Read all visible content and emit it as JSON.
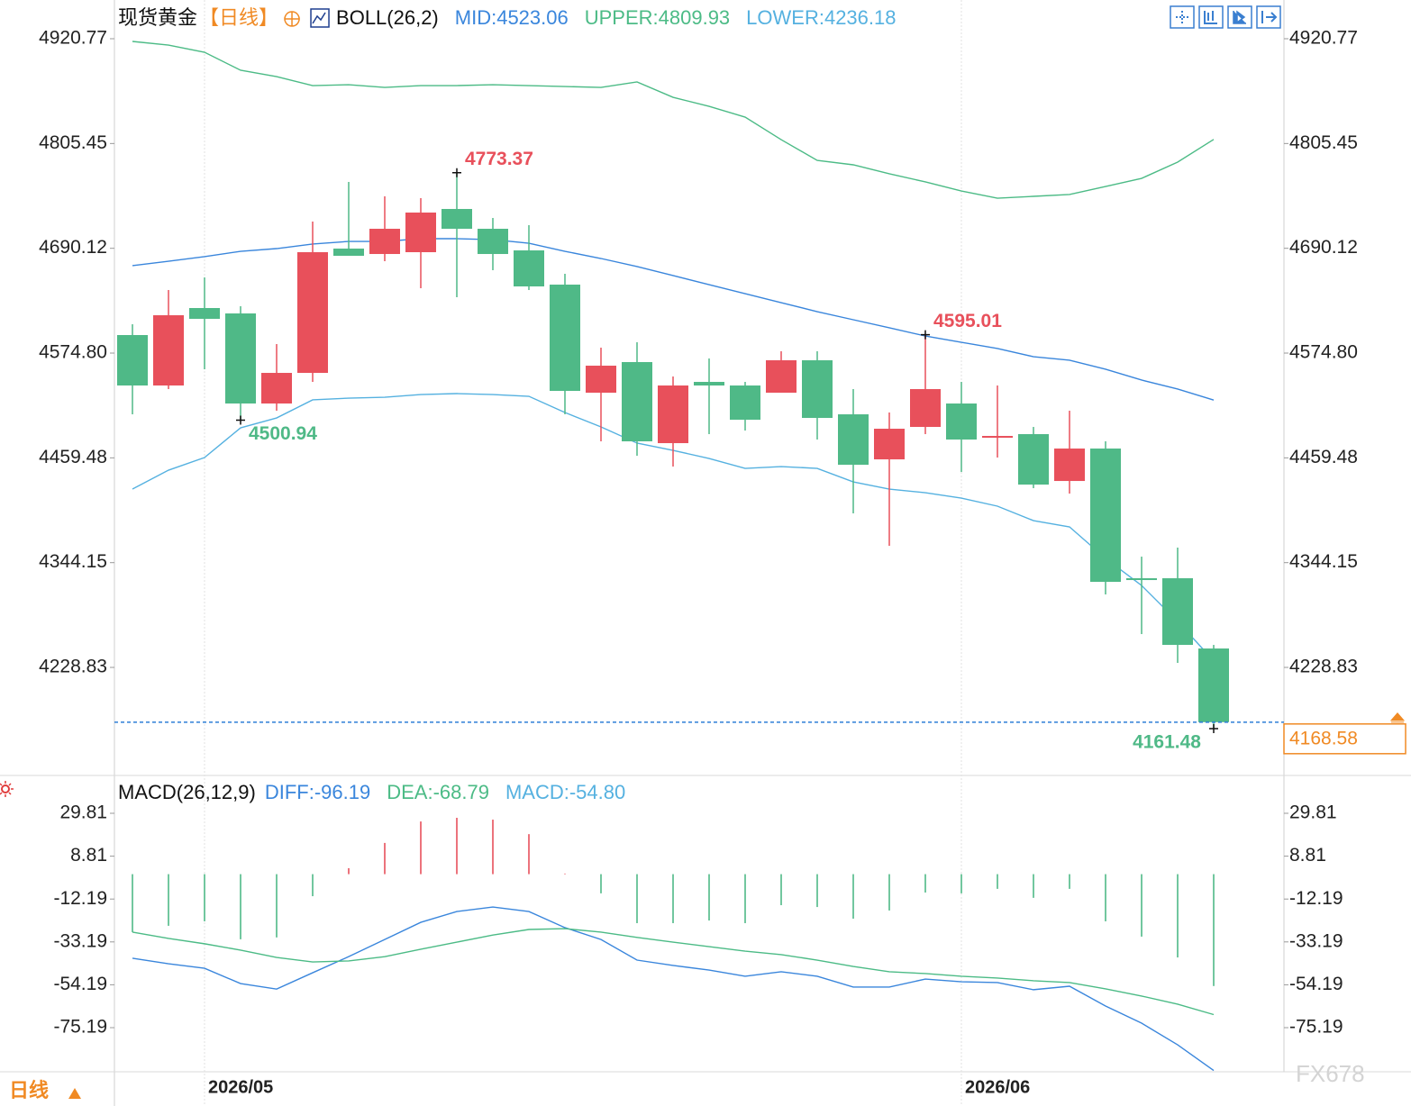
{
  "chart_data": [
    {
      "type": "candlestick",
      "title": "现货黄金",
      "period": "【日线】",
      "indicator": "BOLL(26,2)",
      "categories": [
        null,
        null,
        "2026/05",
        null,
        null,
        null,
        null,
        null,
        null,
        null,
        null,
        null,
        null,
        null,
        null,
        null,
        null,
        null,
        null,
        null,
        null,
        null,
        null,
        "2026/06",
        null,
        null,
        null,
        null,
        null,
        null,
        null
      ],
      "open": [
        4594.63,
        4539.11,
        4624.37,
        4618.42,
        4519.29,
        4552.99,
        4689.79,
        4683.84,
        4685.83,
        4733.41,
        4711.6,
        4687.81,
        4650.14,
        4531.18,
        4564.89,
        4475.67,
        4543.08,
        4539.11,
        4531.18,
        4566.87,
        4507.39,
        4457.82,
        4493.51,
        4519.29,
        4481.62,
        4485.58,
        4434.03,
        4469.72,
        4326.97,
        4326.97,
        4249.65
      ],
      "high": [
        4606.52,
        4644.19,
        4658.07,
        4626.35,
        4584.71,
        4719.53,
        4763.15,
        4747.29,
        4745.31,
        4773.37,
        4723.5,
        4715.57,
        4662.04,
        4580.75,
        4586.7,
        4549.02,
        4568.85,
        4543.08,
        4576.78,
        4576.78,
        4535.15,
        4509.37,
        4595.01,
        4543.08,
        4539.11,
        4493.51,
        4511.35,
        4477.65,
        4350.76,
        4360.67,
        4253.61
      ],
      "low": [
        4507.39,
        4535.15,
        4556.96,
        4500.94,
        4511.35,
        4543.08,
        4681.86,
        4675.91,
        4646.17,
        4636.26,
        4666.0,
        4644.19,
        4507.39,
        4477.65,
        4461.79,
        4449.89,
        4485.58,
        4489.55,
        4531.18,
        4479.63,
        4398.34,
        4362.66,
        4485.58,
        4443.94,
        4459.81,
        4426.1,
        4420.15,
        4309.13,
        4265.51,
        4233.79,
        4161.48
      ],
      "close": [
        4539.11,
        4616.43,
        4612.47,
        4519.29,
        4552.99,
        4685.83,
        4681.86,
        4711.6,
        4729.45,
        4711.6,
        4683.84,
        4648.16,
        4533.16,
        4560.92,
        4477.65,
        4539.11,
        4539.11,
        4501.44,
        4566.87,
        4503.42,
        4451.88,
        4491.53,
        4535.15,
        4479.63,
        4483.6,
        4430.07,
        4469.72,
        4323.0,
        4324.99,
        4253.61,
        4168.58
      ],
      "up_color": "#e8505b",
      "down_color": "#4fb987",
      "series": [
        {
          "name": "MID:4523.06",
          "color": "#3a86dc",
          "values": [
            4671.0,
            4675.9,
            4680.9,
            4686.8,
            4689.8,
            4694.8,
            4697.7,
            4697.7,
            4700.7,
            4700.7,
            4699.7,
            4695.7,
            4686.8,
            4678.9,
            4670.0,
            4660.1,
            4650.1,
            4640.2,
            4630.3,
            4620.4,
            4611.5,
            4602.6,
            4593.6,
            4586.7,
            4579.8,
            4570.8,
            4566.9,
            4557.0,
            4545.1,
            4535.2,
            4523.06
          ]
        },
        {
          "name": "UPPER:4809.93",
          "color": "#4cbb86",
          "values": [
            4917.8,
            4913.8,
            4905.9,
            4886.1,
            4879.1,
            4869.2,
            4870.2,
            4867.2,
            4869.2,
            4869.2,
            4870.2,
            4869.2,
            4868.2,
            4867.2,
            4873.2,
            4856.3,
            4846.4,
            4834.5,
            4809.7,
            4786.9,
            4782.0,
            4772.1,
            4763.2,
            4753.2,
            4745.3,
            4747.3,
            4749.3,
            4758.2,
            4767.1,
            4785.0,
            4809.93
          ]
        },
        {
          "name": "LOWER:4236.18",
          "color": "#55b1e0",
          "values": [
            4425.1,
            4445.9,
            4459.8,
            4492.5,
            4503.4,
            4523.3,
            4525.2,
            4526.2,
            4529.2,
            4530.2,
            4529.2,
            4527.2,
            4509.4,
            4493.5,
            4475.7,
            4467.7,
            4458.8,
            4447.9,
            4449.9,
            4447.9,
            4433.0,
            4425.1,
            4421.1,
            4415.2,
            4406.3,
            4390.4,
            4383.5,
            4348.8,
            4319.0,
            4279.4,
            4236.18
          ]
        }
      ],
      "annotations": [
        4773.37,
        4500.94,
        4595.01,
        4161.48
      ],
      "ylim": [
        4110.9,
        4963.4
      ],
      "yticks": [
        4920.77,
        4805.45,
        4690.12,
        {
          "value": 4574.8,
          "label": "4574.80"
        },
        4459.48,
        4344.15,
        4228.83
      ],
      "last_price_color": "#f08a24",
      "xgrid": true
    },
    {
      "type": "macd",
      "title": "MACD(26,12,9)",
      "up_color": "#e8505b",
      "down_color": "#4fb987",
      "series": [
        {
          "name": "DIFF:-96.19",
          "color": "#3a86dc",
          "values": [
            -41.2,
            -43.9,
            -46.1,
            -53.6,
            -56.3,
            -48.3,
            -40.4,
            -32.0,
            -23.6,
            -18.3,
            -16.1,
            -18.3,
            -26.2,
            -32.0,
            -42.1,
            -44.7,
            -47.0,
            -50.0,
            -47.8,
            -50.0,
            -55.3,
            -55.3,
            -51.4,
            -52.7,
            -53.1,
            -56.6,
            -54.9,
            -64.6,
            -73.0,
            -83.6,
            -96.19
          ]
        },
        {
          "name": "DEA:-68.79",
          "color": "#4cbb86",
          "values": [
            -28.4,
            -31.5,
            -34.1,
            -37.2,
            -40.8,
            -43.0,
            -42.5,
            -40.4,
            -36.8,
            -33.3,
            -29.8,
            -27.1,
            -26.7,
            -28.4,
            -31.0,
            -33.3,
            -35.5,
            -37.7,
            -39.4,
            -42.1,
            -45.2,
            -47.8,
            -48.7,
            -50.0,
            -50.9,
            -52.2,
            -53.1,
            -56.2,
            -59.7,
            -63.7,
            -68.79
          ]
        },
        {
          "name": "MACD:-54.80",
          "color": "#55b1e0",
          "style": "bar",
          "values": [
            -28.4,
            -25.3,
            -23.1,
            -31.9,
            -31.0,
            -10.8,
            2.9,
            15.3,
            25.8,
            27.6,
            26.7,
            19.6,
            0.3,
            -9.4,
            -24.0,
            -24.0,
            -22.7,
            -24.0,
            -15.2,
            -16.1,
            -21.8,
            -17.8,
            -9.0,
            -9.4,
            -7.2,
            -11.6,
            -7.2,
            -23.1,
            -30.6,
            -40.8,
            -54.8
          ]
        }
      ],
      "ylim": [
        -96.8,
        47.9
      ],
      "yticks": [
        29.81,
        8.81,
        -12.19,
        -33.19,
        -54.19,
        -75.19
      ]
    }
  ],
  "footer": {
    "period": "日线"
  },
  "watermark": "FX678"
}
